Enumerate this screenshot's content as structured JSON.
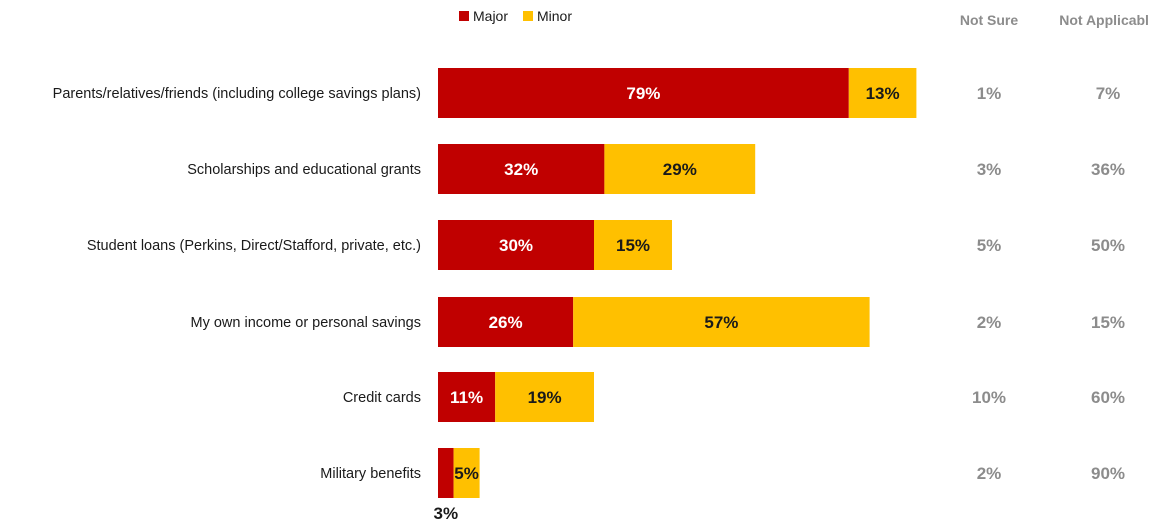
{
  "chart_data": {
    "type": "bar",
    "orientation": "horizontal",
    "stacked": true,
    "categories": [
      "Parents/relatives/friends (including college savings plans)",
      "Scholarships and educational grants",
      "Student loans (Perkins, Direct/Stafford, private, etc.)",
      "My own income or personal savings",
      "Credit cards",
      "Military benefits"
    ],
    "series": [
      {
        "name": "Major",
        "color": "#C00000",
        "values": [
          79,
          32,
          30,
          26,
          11,
          3
        ]
      },
      {
        "name": "Minor",
        "color": "#FFC000",
        "values": [
          13,
          29,
          15,
          57,
          19,
          5
        ]
      }
    ],
    "value_labels": {
      "Major": [
        "79%",
        "32%",
        "30%",
        "26%",
        "11%",
        "3%"
      ],
      "Minor": [
        "13%",
        "29%",
        "15%",
        "57%",
        "19%",
        "5%"
      ]
    },
    "extra_columns": [
      {
        "header": "Not Sure",
        "values": [
          1,
          3,
          5,
          2,
          10,
          2
        ],
        "labels": [
          "1%",
          "3%",
          "5%",
          "2%",
          "10%",
          "2%"
        ]
      },
      {
        "header": "Not Applicable",
        "values": [
          7,
          36,
          50,
          15,
          60,
          90
        ],
        "labels": [
          "7%",
          "36%",
          "50%",
          "15%",
          "60%",
          "90%"
        ]
      }
    ],
    "xlim": [
      0,
      100
    ],
    "grid": false,
    "legend": "top",
    "title": "",
    "xlabel": "",
    "ylabel": ""
  }
}
